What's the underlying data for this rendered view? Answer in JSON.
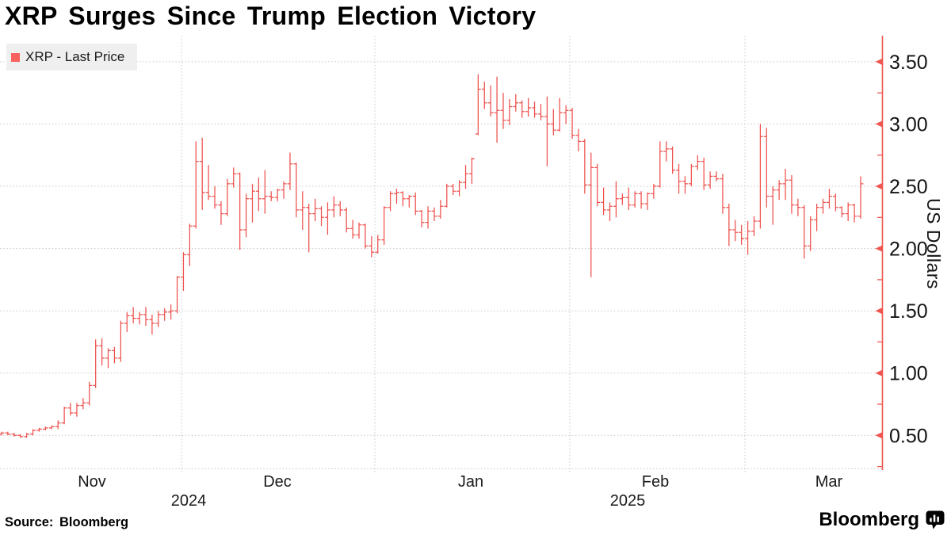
{
  "chart": {
    "title": "XRP Surges Since Trump Election Victory",
    "legend": {
      "label": "XRP - Last Price",
      "swatch_icon": "red-square-swatch"
    },
    "source_note": "Source: Bloomberg",
    "brand": {
      "wordmark": "Bloomberg",
      "icon": "bloomberg-chart-bubble-icon"
    },
    "colors": {
      "series_red": "#ee514c",
      "axis_red": "#ef564f",
      "legend_swatch": "#f9625e",
      "grid_gray": "#c7c7c7",
      "legend_bg": "#efefef",
      "text": "#000000"
    },
    "y_axis": {
      "label": "US Dollars",
      "side": "right",
      "tick_labels": [
        "3.50",
        "3.00",
        "2.50",
        "2.00",
        "1.50",
        "1.00",
        "0.50"
      ],
      "tick_values": [
        3.5,
        3.0,
        2.5,
        2.0,
        1.5,
        1.0,
        0.5
      ],
      "minor_tick_values": [
        3.25,
        2.75,
        2.25,
        1.75,
        1.25,
        0.75,
        0.25
      ],
      "visible_range": [
        0.22,
        3.71
      ]
    },
    "x_axis": {
      "month_labels": [
        "Nov",
        "Dec",
        "Jan",
        "Feb",
        "Mar"
      ],
      "year_labels": [
        "2024",
        "2025"
      ]
    }
  },
  "chart_data": {
    "type": "ohlc-bar",
    "series_name": "XRP - Last Price",
    "unit": "US Dollars",
    "frequency": "daily",
    "start_date": "2024-11-01",
    "end_date": "2025-03-17",
    "ohlc_fields": [
      "open",
      "high",
      "low",
      "close"
    ],
    "ohlc": [
      [
        0.51,
        0.53,
        0.5,
        0.52
      ],
      [
        0.52,
        0.53,
        0.5,
        0.51
      ],
      [
        0.51,
        0.52,
        0.49,
        0.5
      ],
      [
        0.5,
        0.51,
        0.48,
        0.49
      ],
      [
        0.49,
        0.52,
        0.48,
        0.51
      ],
      [
        0.51,
        0.55,
        0.5,
        0.54
      ],
      [
        0.54,
        0.56,
        0.53,
        0.55
      ],
      [
        0.55,
        0.57,
        0.54,
        0.56
      ],
      [
        0.56,
        0.58,
        0.55,
        0.57
      ],
      [
        0.57,
        0.62,
        0.55,
        0.6
      ],
      [
        0.6,
        0.73,
        0.59,
        0.72
      ],
      [
        0.72,
        0.76,
        0.66,
        0.68
      ],
      [
        0.68,
        0.76,
        0.65,
        0.74
      ],
      [
        0.74,
        0.8,
        0.71,
        0.76
      ],
      [
        0.76,
        0.93,
        0.74,
        0.9
      ],
      [
        0.9,
        1.27,
        0.88,
        1.22
      ],
      [
        1.22,
        1.28,
        1.06,
        1.12
      ],
      [
        1.12,
        1.2,
        1.04,
        1.18
      ],
      [
        1.18,
        1.21,
        1.08,
        1.12
      ],
      [
        1.12,
        1.42,
        1.09,
        1.4
      ],
      [
        1.4,
        1.49,
        1.33,
        1.46
      ],
      [
        1.46,
        1.53,
        1.4,
        1.44
      ],
      [
        1.44,
        1.49,
        1.39,
        1.47
      ],
      [
        1.47,
        1.53,
        1.38,
        1.43
      ],
      [
        1.43,
        1.47,
        1.31,
        1.4
      ],
      [
        1.4,
        1.5,
        1.37,
        1.47
      ],
      [
        1.47,
        1.52,
        1.42,
        1.49
      ],
      [
        1.49,
        1.55,
        1.43,
        1.5
      ],
      [
        1.5,
        1.78,
        1.48,
        1.77
      ],
      [
        1.77,
        1.97,
        1.66,
        1.95
      ],
      [
        1.95,
        2.2,
        1.86,
        2.18
      ],
      [
        2.18,
        2.86,
        2.16,
        2.7
      ],
      [
        2.7,
        2.89,
        2.31,
        2.45
      ],
      [
        2.45,
        2.67,
        2.39,
        2.42
      ],
      [
        2.42,
        2.5,
        2.32,
        2.35
      ],
      [
        2.35,
        2.38,
        2.19,
        2.28
      ],
      [
        2.28,
        2.56,
        2.26,
        2.52
      ],
      [
        2.52,
        2.65,
        2.49,
        2.6
      ],
      [
        2.6,
        2.61,
        1.99,
        2.15
      ],
      [
        2.15,
        2.44,
        2.09,
        2.4
      ],
      [
        2.4,
        2.52,
        2.21,
        2.46
      ],
      [
        2.46,
        2.57,
        2.3,
        2.4
      ],
      [
        2.4,
        2.63,
        2.28,
        2.42
      ],
      [
        2.42,
        2.46,
        2.38,
        2.41
      ],
      [
        2.41,
        2.48,
        2.38,
        2.47
      ],
      [
        2.47,
        2.54,
        2.4,
        2.52
      ],
      [
        2.52,
        2.77,
        2.47,
        2.68
      ],
      [
        2.68,
        2.69,
        2.25,
        2.31
      ],
      [
        2.31,
        2.46,
        2.15,
        2.33
      ],
      [
        2.33,
        2.36,
        1.97,
        2.28
      ],
      [
        2.28,
        2.4,
        2.22,
        2.32
      ],
      [
        2.32,
        2.34,
        2.18,
        2.25
      ],
      [
        2.25,
        2.37,
        2.11,
        2.31
      ],
      [
        2.31,
        2.42,
        2.25,
        2.35
      ],
      [
        2.35,
        2.38,
        2.26,
        2.31
      ],
      [
        2.31,
        2.33,
        2.13,
        2.16
      ],
      [
        2.16,
        2.23,
        2.08,
        2.11
      ],
      [
        2.11,
        2.21,
        2.08,
        2.19
      ],
      [
        2.19,
        2.2,
        2.0,
        2.02
      ],
      [
        2.02,
        2.1,
        1.93,
        1.97
      ],
      [
        1.97,
        2.11,
        1.96,
        2.07
      ],
      [
        2.07,
        2.34,
        2.03,
        2.33
      ],
      [
        2.33,
        2.46,
        2.3,
        2.44
      ],
      [
        2.44,
        2.48,
        2.36,
        2.45
      ],
      [
        2.45,
        2.46,
        2.34,
        2.4
      ],
      [
        2.4,
        2.43,
        2.33,
        2.42
      ],
      [
        2.42,
        2.45,
        2.27,
        2.3
      ],
      [
        2.3,
        2.31,
        2.17,
        2.21
      ],
      [
        2.21,
        2.34,
        2.16,
        2.3
      ],
      [
        2.3,
        2.33,
        2.22,
        2.26
      ],
      [
        2.26,
        2.39,
        2.24,
        2.34
      ],
      [
        2.34,
        2.52,
        2.33,
        2.5
      ],
      [
        2.5,
        2.52,
        2.43,
        2.46
      ],
      [
        2.46,
        2.55,
        2.42,
        2.53
      ],
      [
        2.53,
        2.67,
        2.48,
        2.6
      ],
      [
        2.6,
        2.73,
        2.52,
        2.72
      ],
      [
        2.92,
        3.4,
        2.91,
        3.28
      ],
      [
        3.28,
        3.34,
        3.12,
        3.17
      ],
      [
        3.17,
        3.31,
        3.06,
        3.09
      ],
      [
        3.09,
        3.38,
        2.85,
        3.11
      ],
      [
        3.11,
        3.25,
        2.96,
        3.03
      ],
      [
        3.03,
        3.2,
        2.99,
        3.14
      ],
      [
        3.14,
        3.24,
        3.1,
        3.17
      ],
      [
        3.17,
        3.19,
        3.05,
        3.1
      ],
      [
        3.1,
        3.21,
        3.06,
        3.13
      ],
      [
        3.13,
        3.18,
        3.05,
        3.08
      ],
      [
        3.08,
        3.16,
        3.03,
        3.06
      ],
      [
        3.06,
        3.22,
        2.66,
        3.0
      ],
      [
        3.0,
        3.12,
        2.91,
        2.95
      ],
      [
        2.95,
        3.21,
        2.94,
        3.09
      ],
      [
        3.09,
        3.15,
        3.0,
        3.11
      ],
      [
        3.11,
        3.13,
        2.88,
        2.91
      ],
      [
        2.91,
        2.96,
        2.78,
        2.86
      ],
      [
        2.86,
        2.88,
        2.44,
        2.51
      ],
      [
        2.51,
        2.77,
        1.77,
        2.65
      ],
      [
        2.65,
        2.68,
        2.34,
        2.37
      ],
      [
        2.37,
        2.49,
        2.27,
        2.31
      ],
      [
        2.31,
        2.37,
        2.22,
        2.34
      ],
      [
        2.34,
        2.54,
        2.25,
        2.4
      ],
      [
        2.4,
        2.44,
        2.35,
        2.41
      ],
      [
        2.41,
        2.49,
        2.31,
        2.35
      ],
      [
        2.35,
        2.46,
        2.33,
        2.44
      ],
      [
        2.44,
        2.46,
        2.32,
        2.36
      ],
      [
        2.36,
        2.45,
        2.31,
        2.44
      ],
      [
        2.44,
        2.52,
        2.4,
        2.5
      ],
      [
        2.5,
        2.86,
        2.49,
        2.78
      ],
      [
        2.78,
        2.86,
        2.7,
        2.8
      ],
      [
        2.8,
        2.82,
        2.6,
        2.63
      ],
      [
        2.63,
        2.68,
        2.44,
        2.54
      ],
      [
        2.54,
        2.58,
        2.44,
        2.52
      ],
      [
        2.52,
        2.68,
        2.5,
        2.66
      ],
      [
        2.66,
        2.75,
        2.63,
        2.7
      ],
      [
        2.7,
        2.73,
        2.47,
        2.51
      ],
      [
        2.51,
        2.62,
        2.48,
        2.58
      ],
      [
        2.58,
        2.62,
        2.54,
        2.56
      ],
      [
        2.56,
        2.6,
        2.28,
        2.33
      ],
      [
        2.33,
        2.36,
        2.02,
        2.15
      ],
      [
        2.15,
        2.23,
        2.06,
        2.13
      ],
      [
        2.13,
        2.19,
        2.03,
        2.08
      ],
      [
        2.08,
        2.22,
        1.95,
        2.14
      ],
      [
        2.14,
        2.26,
        2.1,
        2.22
      ],
      [
        2.22,
        3.0,
        2.16,
        2.9
      ],
      [
        2.9,
        2.97,
        2.33,
        2.42
      ],
      [
        2.42,
        2.5,
        2.19,
        2.47
      ],
      [
        2.47,
        2.55,
        2.39,
        2.52
      ],
      [
        2.52,
        2.64,
        2.39,
        2.55
      ],
      [
        2.55,
        2.59,
        2.28,
        2.35
      ],
      [
        2.35,
        2.4,
        2.26,
        2.33
      ],
      [
        2.33,
        2.35,
        1.92,
        2.02
      ],
      [
        2.02,
        2.26,
        1.98,
        2.23
      ],
      [
        2.23,
        2.36,
        2.14,
        2.33
      ],
      [
        2.33,
        2.4,
        2.28,
        2.37
      ],
      [
        2.37,
        2.48,
        2.32,
        2.42
      ],
      [
        2.42,
        2.44,
        2.3,
        2.33
      ],
      [
        2.33,
        2.34,
        2.25,
        2.28
      ],
      [
        2.28,
        2.37,
        2.22,
        2.35
      ],
      [
        2.35,
        2.36,
        2.21,
        2.26
      ],
      [
        2.26,
        2.58,
        2.24,
        2.52
      ]
    ]
  }
}
